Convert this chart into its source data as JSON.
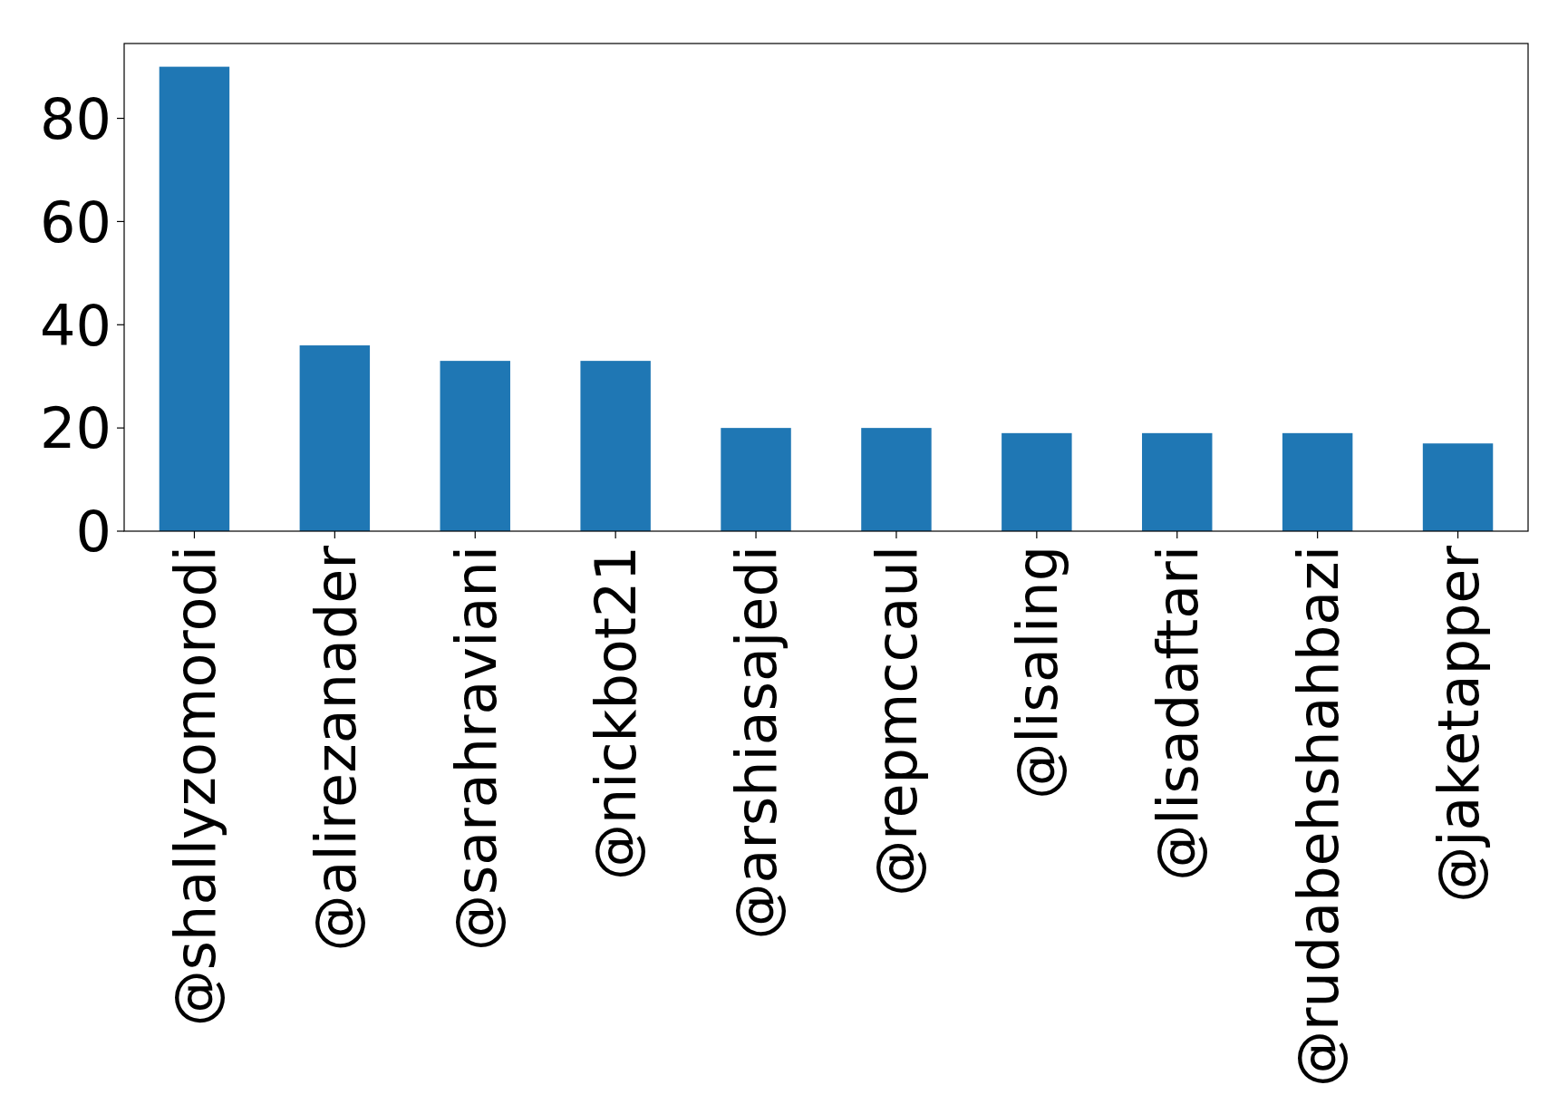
{
  "chart_data": {
    "type": "bar",
    "categories": [
      "@shallyzomorodi",
      "@alirezanader",
      "@sarahraviani",
      "@nickbot21",
      "@arshiasajedi",
      "@repmccaul",
      "@lisaling",
      "@lisadaftari",
      "@rudabehshahbazi",
      "@jaketapper"
    ],
    "values": [
      90,
      36,
      33,
      33,
      20,
      20,
      19,
      19,
      19,
      17
    ],
    "color": "#1f77b4",
    "ylim": [
      0,
      94.5
    ],
    "yticks": [
      0,
      20,
      40,
      60,
      80
    ]
  }
}
